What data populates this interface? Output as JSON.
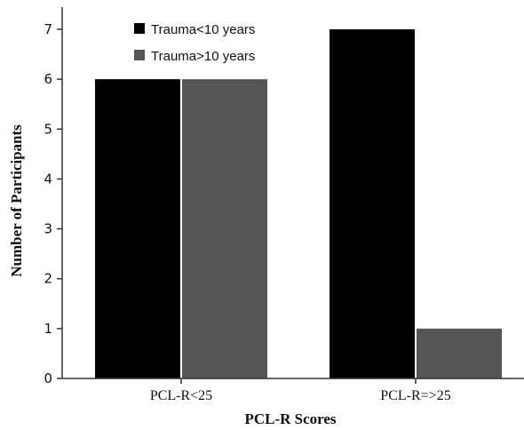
{
  "chart_data": {
    "type": "bar",
    "categories": [
      "PCL-R<25",
      "PCL-R=>25"
    ],
    "series": [
      {
        "name": "Trauma<10 years",
        "values": [
          6,
          7
        ],
        "color": "#000000"
      },
      {
        "name": "Trauma>10 years",
        "values": [
          6,
          1
        ],
        "color": "#555555"
      }
    ],
    "xlabel": "PCL-R Scores",
    "ylabel": "Number of Participants",
    "ylim": [
      0,
      7
    ],
    "yticks": [
      0,
      1,
      2,
      3,
      4,
      5,
      6,
      7
    ],
    "grid": false,
    "legend_position": "top-center"
  }
}
